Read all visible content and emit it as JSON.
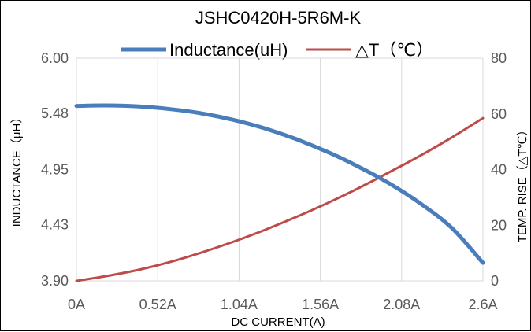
{
  "chart_data": {
    "type": "line",
    "title": "JSHC0420H-5R6M-K",
    "xlabel": "DC  CURRENT(A)",
    "ylabel": "INDUCTANCE（μH）",
    "y2label": "TEMP.  RISE（△T℃）",
    "x_tick_labels": [
      "0A",
      "0.52A",
      "1.04A",
      "1.56A",
      "2.08A",
      "2.6A"
    ],
    "x_ticks": [
      0,
      0.52,
      1.04,
      1.56,
      2.08,
      2.6
    ],
    "y_tick_labels": [
      "3.90",
      "4.43",
      "4.95",
      "5.48",
      "6.00"
    ],
    "y_ticks": [
      3.9,
      4.43,
      4.95,
      5.48,
      6.0
    ],
    "y2_tick_labels": [
      "0",
      "20",
      "40",
      "60",
      "80"
    ],
    "y2_ticks": [
      0,
      20,
      40,
      60,
      80
    ],
    "xlim": [
      0,
      2.6
    ],
    "ylim": [
      3.9,
      6.0
    ],
    "y2lim": [
      0,
      80
    ],
    "grid": "vertical",
    "legend_position": "top",
    "series": [
      {
        "name": "Inductance(uH)",
        "axis": "left",
        "color": "#4A7EBB",
        "x": [
          0,
          0.2,
          0.4,
          0.6,
          0.8,
          1.0,
          1.2,
          1.4,
          1.6,
          1.8,
          2.0,
          2.2,
          2.4,
          2.6
        ],
        "y": [
          5.55,
          5.555,
          5.545,
          5.52,
          5.48,
          5.42,
          5.34,
          5.24,
          5.12,
          4.98,
          4.82,
          4.63,
          4.4,
          4.07
        ]
      },
      {
        "name": "△T（℃）",
        "axis": "right",
        "color": "#BE4B48",
        "x": [
          0,
          0.2,
          0.4,
          0.6,
          0.8,
          1.0,
          1.2,
          1.4,
          1.6,
          1.8,
          2.0,
          2.2,
          2.4,
          2.6
        ],
        "y": [
          0,
          1.8,
          4.0,
          6.8,
          10.2,
          14.0,
          18.2,
          22.8,
          27.8,
          33.2,
          39.0,
          45.0,
          51.5,
          58.5
        ]
      }
    ]
  }
}
